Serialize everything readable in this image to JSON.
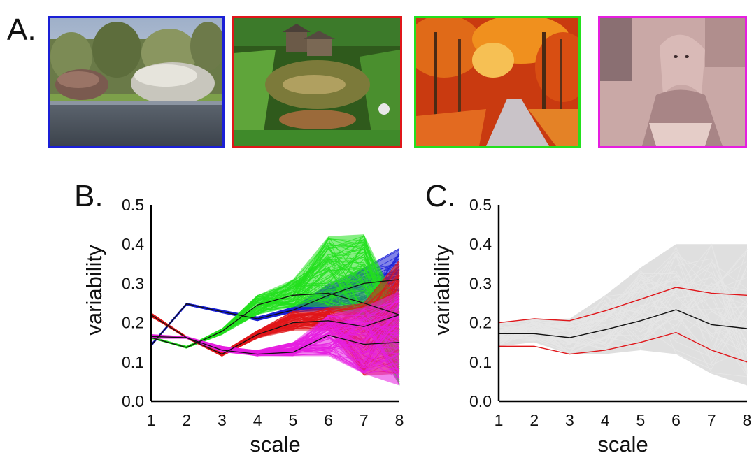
{
  "panels": {
    "a_label": "A.",
    "b_label": "B.",
    "c_label": "C."
  },
  "thumbnails": [
    {
      "name": "rocks-photo",
      "border_color": "#1a1fd6",
      "subject": "boulders on gravel under cloudy sky"
    },
    {
      "name": "watermill-photo",
      "border_color": "#e0161a",
      "subject": "mill house beside pond"
    },
    {
      "name": "autumn-forest-photo",
      "border_color": "#22e01e",
      "subject": "orange autumn forest path"
    },
    {
      "name": "portrait-photo",
      "border_color": "#e61ee0",
      "subject": "woman in headscarf, sepia-pink tint"
    }
  ],
  "chart_data": [
    {
      "type": "line",
      "panel": "B.",
      "xlabel": "scale",
      "ylabel": "variability",
      "xlim": [
        1,
        8
      ],
      "ylim": [
        0.0,
        0.5
      ],
      "xticks": [
        1,
        2,
        3,
        4,
        5,
        6,
        7,
        8
      ],
      "yticks": [
        "0.0",
        "0.1",
        "0.2",
        "0.3",
        "0.4",
        "0.5"
      ],
      "grid": false,
      "series": [
        {
          "color": "#1a1fd6",
          "style": "bundle",
          "x": [
            1,
            2,
            3,
            4,
            5,
            6,
            7,
            8
          ],
          "lower": [
            0.14,
            0.245,
            0.225,
            0.205,
            0.225,
            0.23,
            0.22,
            0.2
          ],
          "upper": [
            0.145,
            0.25,
            0.232,
            0.215,
            0.24,
            0.3,
            0.34,
            0.39
          ],
          "mean": [
            0.142,
            0.248,
            0.228,
            0.21,
            0.232,
            0.27,
            0.3,
            0.31
          ]
        },
        {
          "color": "#22e01e",
          "style": "bundle",
          "x": [
            1,
            2,
            3,
            4,
            5,
            6,
            7,
            8
          ],
          "lower": [
            0.16,
            0.135,
            0.17,
            0.22,
            0.24,
            0.24,
            0.2,
            0.04
          ],
          "upper": [
            0.165,
            0.14,
            0.185,
            0.27,
            0.31,
            0.42,
            0.425,
            0.24
          ],
          "mean": [
            0.162,
            0.137,
            0.178,
            0.245,
            0.27,
            0.275,
            0.25,
            0.22
          ]
        },
        {
          "color": "#e0161a",
          "style": "bundle",
          "x": [
            1,
            2,
            3,
            4,
            5,
            6,
            7,
            8
          ],
          "lower": [
            0.215,
            0.16,
            0.115,
            0.16,
            0.18,
            0.18,
            0.065,
            0.07
          ],
          "upper": [
            0.225,
            0.165,
            0.125,
            0.18,
            0.23,
            0.24,
            0.25,
            0.36
          ],
          "mean": [
            0.22,
            0.162,
            0.12,
            0.17,
            0.2,
            0.205,
            0.19,
            0.22
          ]
        },
        {
          "color": "#e61ee0",
          "style": "bundle",
          "x": [
            1,
            2,
            3,
            4,
            5,
            6,
            7,
            8
          ],
          "lower": [
            0.16,
            0.16,
            0.125,
            0.115,
            0.115,
            0.115,
            0.07,
            0.04
          ],
          "upper": [
            0.17,
            0.165,
            0.14,
            0.13,
            0.15,
            0.22,
            0.24,
            0.28
          ],
          "mean": [
            0.165,
            0.162,
            0.13,
            0.12,
            0.125,
            0.168,
            0.145,
            0.15
          ]
        }
      ],
      "mean_line": {
        "color": "#111111",
        "series_means": "black mean lines drawn for each colored bundle"
      }
    },
    {
      "type": "line",
      "panel": "C.",
      "xlabel": "scale",
      "ylabel": "variability",
      "xlim": [
        1,
        8
      ],
      "ylim": [
        0.0,
        0.5
      ],
      "xticks": [
        1,
        2,
        3,
        4,
        5,
        6,
        7,
        8
      ],
      "yticks": [
        "0.0",
        "0.1",
        "0.2",
        "0.3",
        "0.4",
        "0.5"
      ],
      "grid": false,
      "band": {
        "color": "#d9d9d9",
        "x": [
          1,
          2,
          3,
          4,
          5,
          6,
          7,
          8
        ],
        "lower": [
          0.14,
          0.15,
          0.12,
          0.12,
          0.13,
          0.12,
          0.07,
          0.04
        ],
        "upper": [
          0.2,
          0.21,
          0.21,
          0.27,
          0.34,
          0.4,
          0.4,
          0.4
        ]
      },
      "series": [
        {
          "color": "#111111",
          "x": [
            1,
            2,
            3,
            4,
            5,
            6,
            7,
            8
          ],
          "y": [
            0.172,
            0.172,
            0.162,
            0.182,
            0.205,
            0.233,
            0.195,
            0.185
          ]
        },
        {
          "color": "#e0161a",
          "x": [
            1,
            2,
            3,
            4,
            5,
            6,
            7,
            8
          ],
          "y": [
            0.2,
            0.21,
            0.205,
            0.23,
            0.26,
            0.29,
            0.275,
            0.27
          ]
        },
        {
          "color": "#e0161a",
          "x": [
            1,
            2,
            3,
            4,
            5,
            6,
            7,
            8
          ],
          "y": [
            0.14,
            0.14,
            0.12,
            0.13,
            0.15,
            0.175,
            0.13,
            0.1
          ]
        }
      ]
    }
  ]
}
